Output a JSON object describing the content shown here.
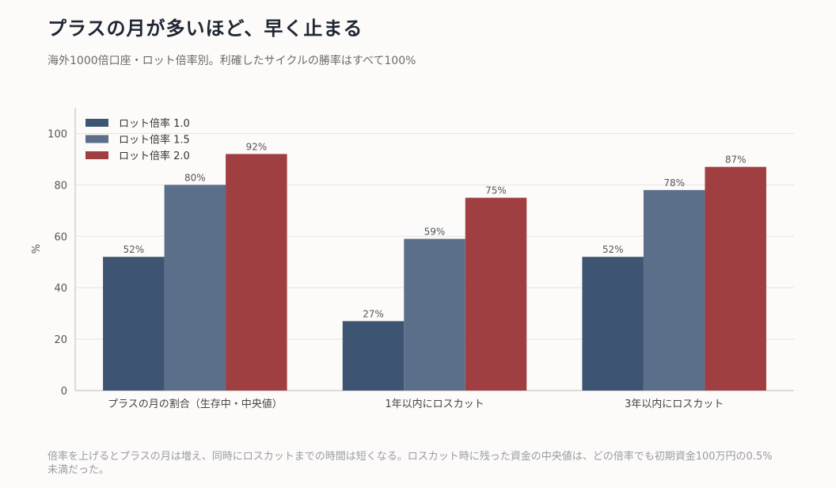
{
  "header": {
    "title": "プラスの月が多いほど、早く止まる",
    "subtitle": "海外1000倍口座・ロット倍率別。利確したサイクルの勝率はすべて100%"
  },
  "footnote": "倍率を上げるとプラスの月は増え、同時にロスカットまでの時間は短くなる。ロスカット時に残った資金の中央値は、どの倍率でも初期資金100万円の0.5%未満だった。",
  "chart_data": {
    "type": "bar",
    "categories": [
      "プラスの月の割合（生存中・中央値）",
      "1年以内にロスカット",
      "3年以内にロスカット"
    ],
    "series": [
      {
        "name": "ロット倍率 1.0",
        "values": [
          52,
          27,
          52
        ],
        "labels": [
          "52%",
          "27%",
          "52%"
        ],
        "color": "#3d5473"
      },
      {
        "name": "ロット倍率 1.5",
        "values": [
          80,
          59,
          78
        ],
        "labels": [
          "80%",
          "59%",
          "78%"
        ],
        "color": "#5b6e8a"
      },
      {
        "name": "ロット倍率 2.0",
        "values": [
          92,
          75,
          87
        ],
        "labels": [
          "92%",
          "75%",
          "87%"
        ],
        "color": "#a03f42"
      }
    ],
    "ylabel": "%",
    "ylim": [
      0,
      110
    ],
    "yticks": [
      0,
      20,
      40,
      60,
      80,
      100
    ],
    "grid": true,
    "legend": "top-left"
  }
}
